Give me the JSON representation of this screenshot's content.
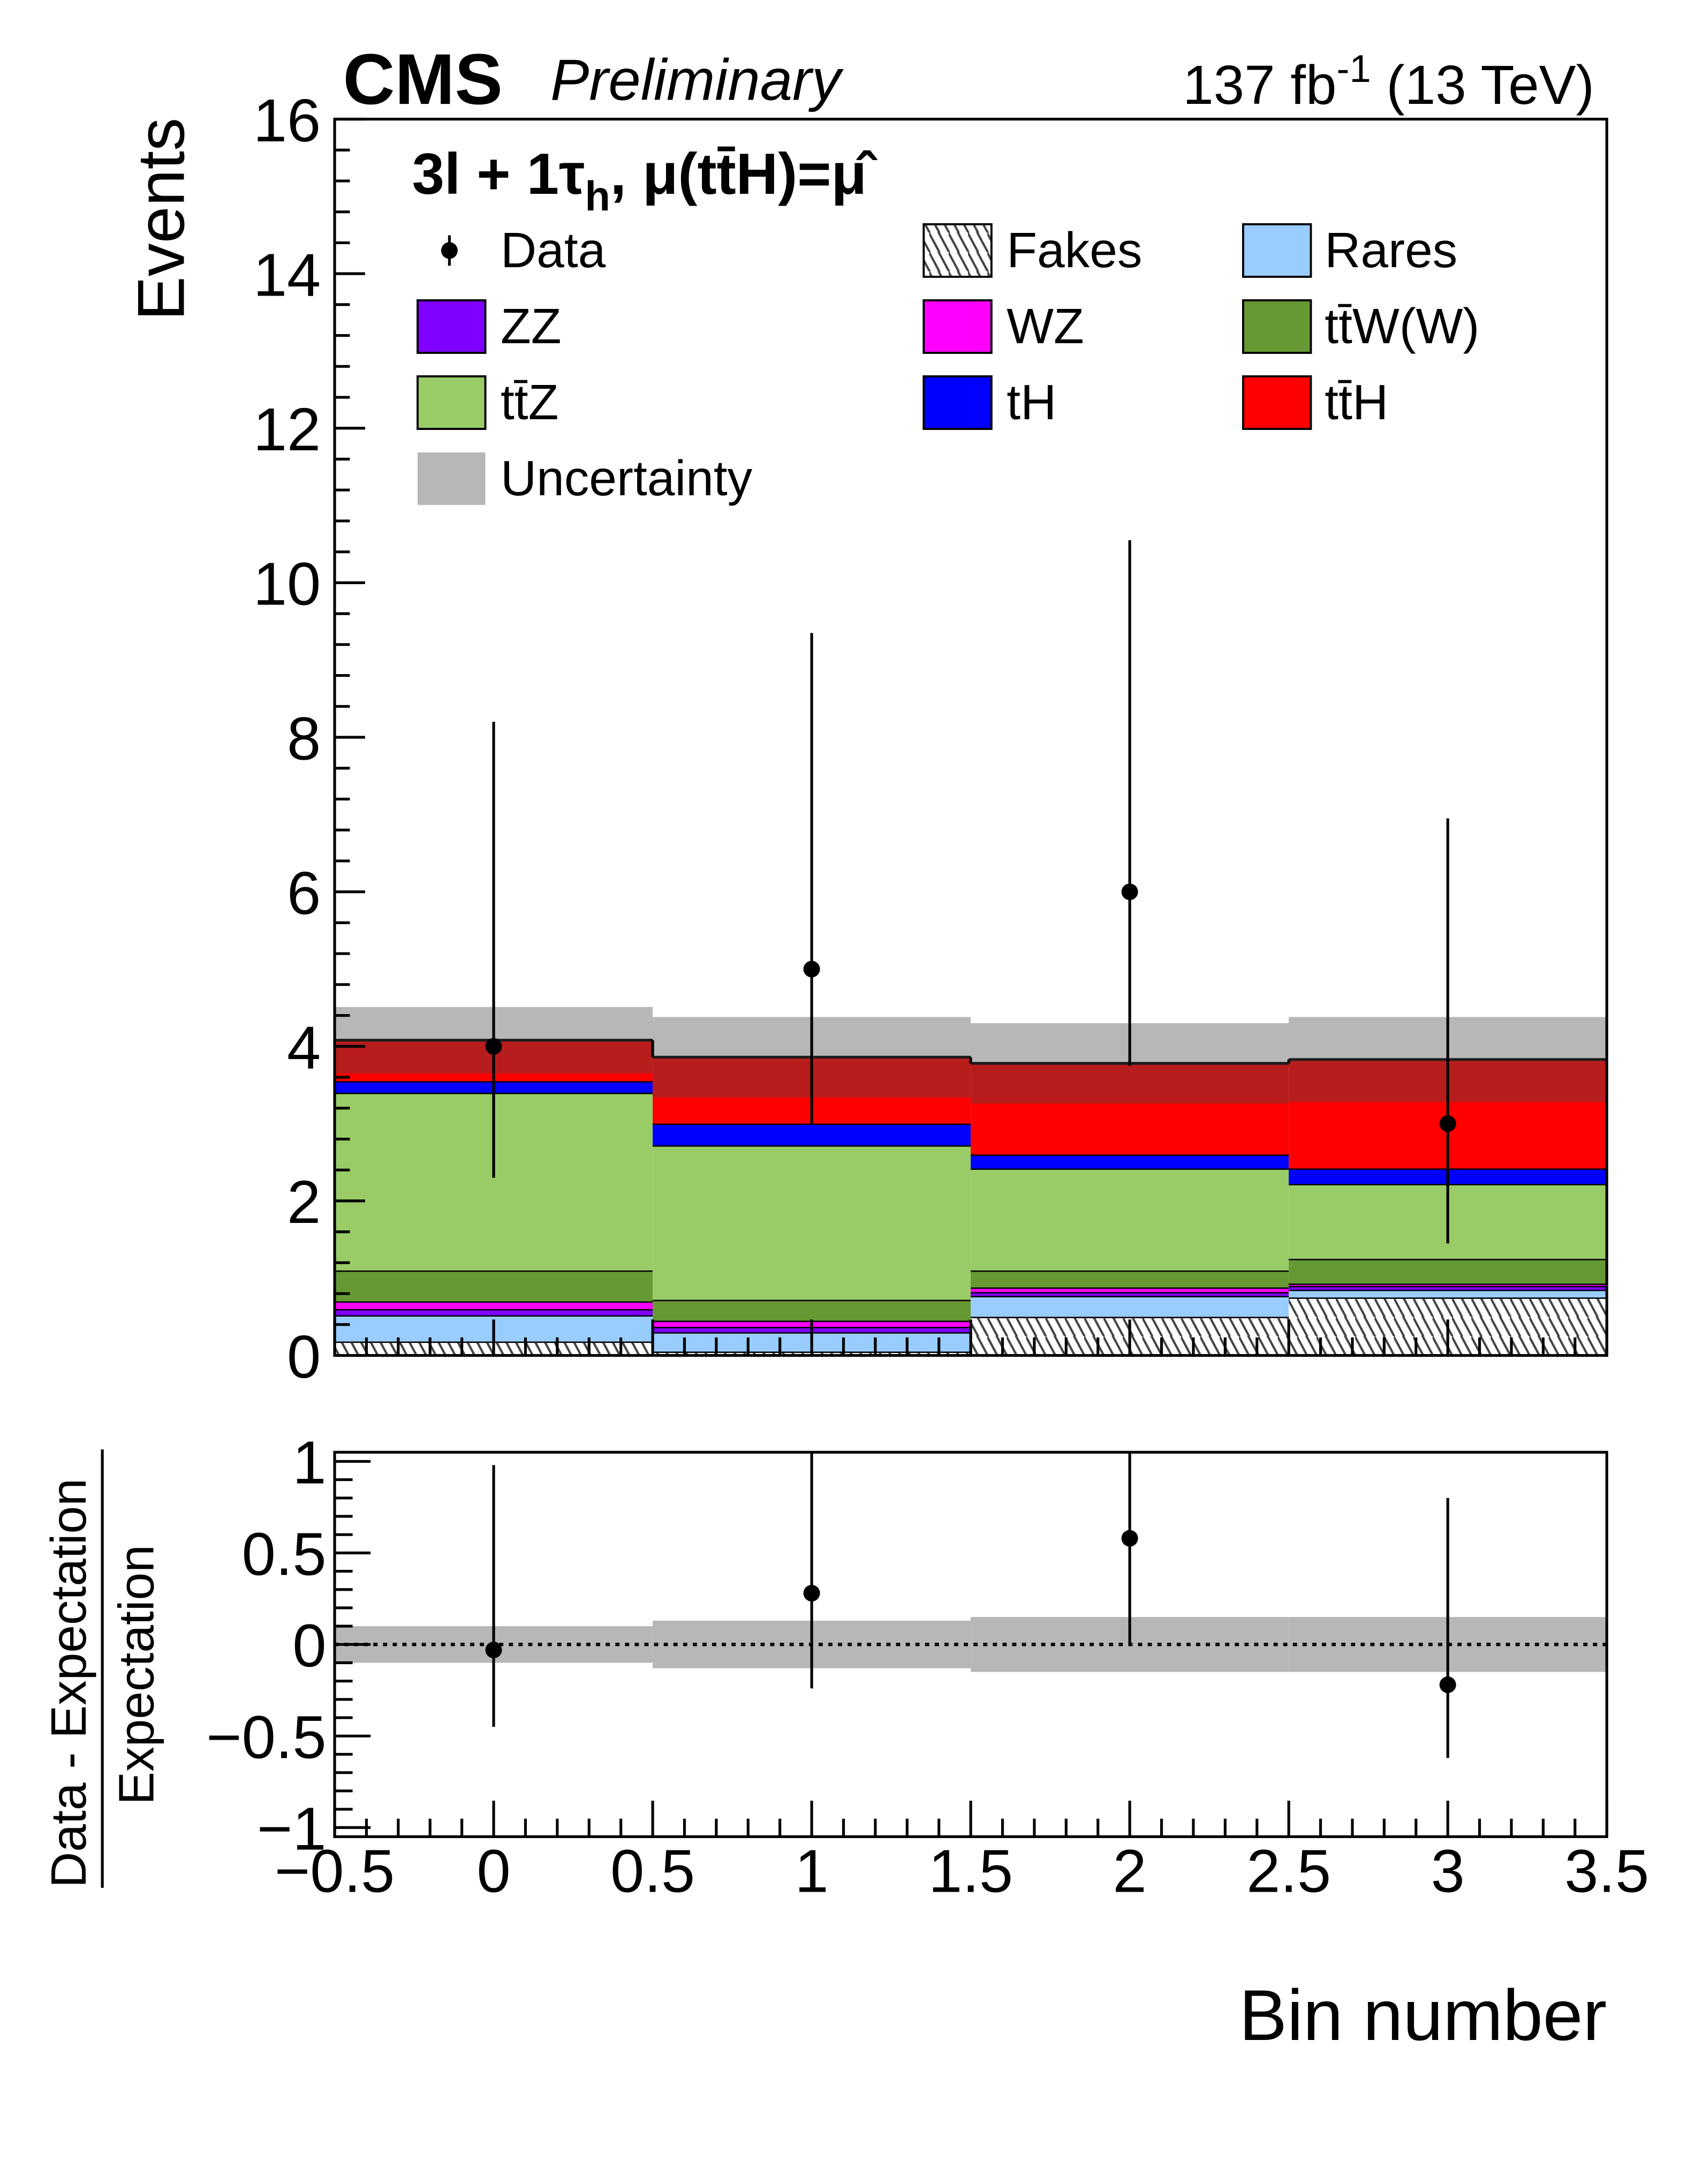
{
  "header": {
    "experiment": "CMS",
    "status": "Preliminary",
    "lumi": "137 fb",
    "lumi_exp": "-1",
    "energy": " (13 TeV)"
  },
  "channel_label": {
    "main": "3l + 1τ",
    "sub": "h",
    "rest": ",  μ(tt̄H)=μ̂"
  },
  "legend": {
    "data": "Data",
    "fakes": "Fakes",
    "rares": "Rares",
    "zz": "ZZ",
    "wz": "WZ",
    "ttw": "tt̄W(W)",
    "ttz": "tt̄Z",
    "th": "tH",
    "tth": "tt̄H",
    "unc": "Uncertainty"
  },
  "colors": {
    "fakes": "#ffffff",
    "rares": "#99ccff",
    "zz": "#7f00ff",
    "wz": "#ff00ff",
    "ttw": "#669933",
    "ttz": "#99cc66",
    "th": "#0000ff",
    "tth": "#ff0000",
    "unc": "#494949"
  },
  "chart_data": [
    {
      "type": "bar",
      "stacked": true,
      "title": "",
      "xlabel": "Bin number",
      "ylabel": "Events",
      "xlim": [
        -0.5,
        3.5
      ],
      "ylim": [
        0,
        16
      ],
      "x_ticks": [
        "−0.5",
        "0",
        "0.5",
        "1",
        "1.5",
        "2",
        "2.5",
        "3",
        "3.5"
      ],
      "y_ticks": [
        "0",
        "2",
        "4",
        "6",
        "8",
        "10",
        "12",
        "14",
        "16"
      ],
      "categories": [
        0,
        1,
        2,
        3
      ],
      "series": [
        {
          "key": "fakes",
          "name": "Fakes",
          "values": [
            0.18,
            0.05,
            0.5,
            0.75
          ]
        },
        {
          "key": "rares",
          "name": "Rares",
          "values": [
            0.34,
            0.25,
            0.27,
            0.1
          ]
        },
        {
          "key": "zz",
          "name": "ZZ",
          "values": [
            0.08,
            0.07,
            0.05,
            0.05
          ]
        },
        {
          "key": "wz",
          "name": "WZ",
          "values": [
            0.1,
            0.08,
            0.06,
            0.03
          ]
        },
        {
          "key": "ttw",
          "name": "tt̄W(W)",
          "values": [
            0.4,
            0.27,
            0.22,
            0.32
          ]
        },
        {
          "key": "ttz",
          "name": "tt̄Z",
          "values": [
            2.3,
            2.0,
            1.32,
            0.97
          ]
        },
        {
          "key": "th",
          "name": "tH",
          "values": [
            0.15,
            0.28,
            0.18,
            0.2
          ]
        },
        {
          "key": "tth",
          "name": "tt̄H",
          "values": [
            0.53,
            0.86,
            1.18,
            1.41
          ]
        }
      ],
      "uncertainty": [
        0.43,
        0.52,
        0.52,
        0.55
      ],
      "data": {
        "values": [
          4,
          5,
          6,
          3
        ],
        "err_low": [
          2.3,
          3.0,
          3.75,
          1.45
        ],
        "err_high": [
          8.2,
          9.35,
          10.55,
          6.95
        ]
      },
      "legend_position": "top"
    },
    {
      "type": "scatter",
      "xlabel": "Bin number",
      "ylabel_num": "Data - Expectation",
      "ylabel_den": "Expectation",
      "xlim": [
        -0.5,
        3.5
      ],
      "ylim": [
        -1.05,
        1.05
      ],
      "y_ticks": [
        "−1",
        "−0.5",
        "0",
        "0.5",
        "1"
      ],
      "x": [
        0,
        1,
        2,
        3
      ],
      "y": [
        -0.03,
        0.28,
        0.58,
        -0.22
      ],
      "err_low": [
        -0.45,
        -0.24,
        0.0,
        -0.62
      ],
      "err_high": [
        0.98,
        1.05,
        1.05,
        0.8
      ],
      "band": [
        0.1,
        0.13,
        0.15,
        0.15
      ]
    }
  ]
}
